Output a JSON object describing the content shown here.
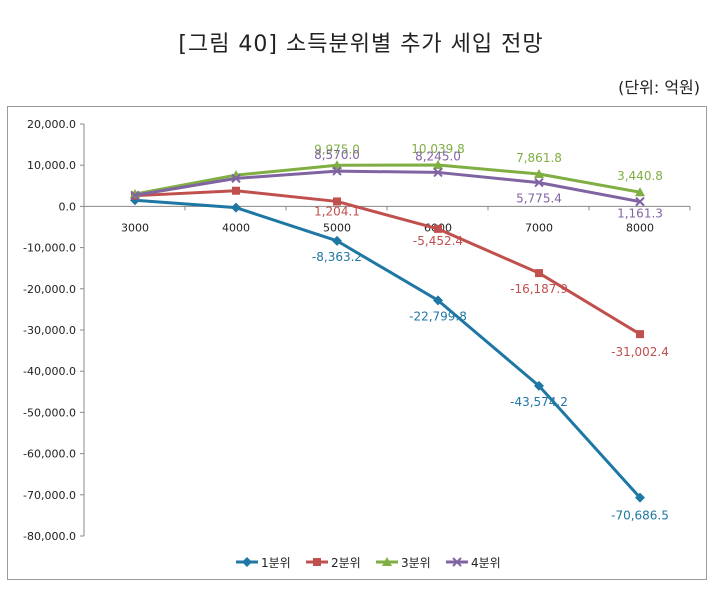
{
  "title": "[그림 40] 소득분위별 추가 세입 전망",
  "unit_label": "(단위: 억원)",
  "chart_data": {
    "type": "line",
    "x": [
      "3000",
      "4000",
      "5000",
      "6000",
      "7000",
      "8000"
    ],
    "ylim": [
      -80000,
      20000
    ],
    "yticks": [
      "20,000.0",
      "10,000.0",
      "0.0",
      "-10,000.0",
      "-20,000.0",
      "-30,000.0",
      "-40,000.0",
      "-50,000.0",
      "-60,000.0",
      "-70,000.0",
      "-80,000.0"
    ],
    "ytick_values": [
      20000,
      10000,
      0,
      -10000,
      -20000,
      -30000,
      -40000,
      -50000,
      -60000,
      -70000,
      -80000
    ],
    "grid": false,
    "legend_position": "bottom",
    "series": [
      {
        "name": "1분위",
        "color": "#1f77a4",
        "marker": "diamond",
        "values": [
          1500,
          -300,
          -8363.2,
          -22799.8,
          -43574.2,
          -70686.5
        ],
        "labels": [
          "",
          "",
          "-8,363.2",
          "-22,799.8",
          "-43,574.2",
          "-70,686.5"
        ]
      },
      {
        "name": "2분위",
        "color": "#c0504d",
        "marker": "square",
        "values": [
          2600,
          3800,
          1204.1,
          -5452.4,
          -16187.9,
          -31002.4
        ],
        "labels": [
          "",
          "",
          "1,204.1",
          "-5,452.4",
          "-16,187.9",
          "-31,002.4"
        ]
      },
      {
        "name": "3분위",
        "color": "#7fae42",
        "marker": "triangle",
        "values": [
          3000,
          7600,
          9975.0,
          10039.8,
          7861.8,
          3440.8
        ],
        "labels": [
          "",
          "",
          "9,975.0",
          "10,039.8",
          "7,861.8",
          "3,440.8"
        ]
      },
      {
        "name": "4분위",
        "color": "#8064a2",
        "marker": "x",
        "values": [
          2700,
          6800,
          8570.0,
          8245.0,
          5775.4,
          1161.3
        ],
        "labels": [
          "",
          "",
          "8,570.0",
          "8,245.0",
          "5,775.4",
          "1,161.3"
        ]
      }
    ]
  }
}
